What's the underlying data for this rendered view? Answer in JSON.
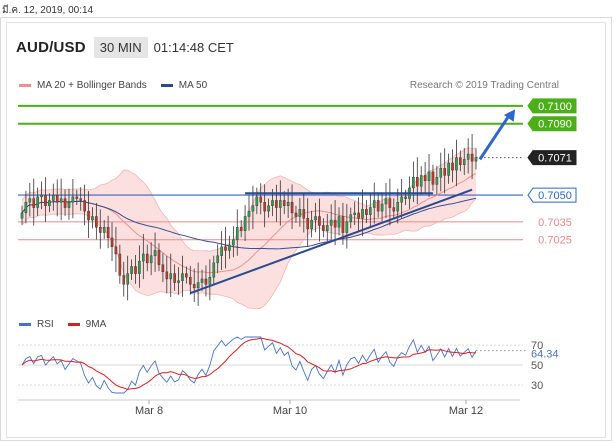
{
  "timestamp": "มี.ค. 12, 2019, 00:14",
  "header": {
    "symbol": "AUD/USD",
    "timeframe": "30 MIN",
    "time": "01:14:48 CET"
  },
  "legend": {
    "bollinger": "MA 20 + Bollinger Bands",
    "ma50": "MA 50"
  },
  "credit": "Research © 2019 Trading Central",
  "rsi_legend": {
    "rsi": "RSI",
    "ma9": "9MA"
  },
  "colors": {
    "resistance_green": "#4caf1a",
    "support_red": "#e88a8a",
    "pivot_blue": "#2f66c8",
    "trend_navy": "#2b4a8c",
    "bollinger_fill": "#fbd5d5",
    "ma20_pink": "#f08f8f",
    "ma50_navy": "#3a4d8f",
    "candle_dark": "#333333",
    "candle_up": "#2e9e4f",
    "candle_down": "#c0392b",
    "rsi_blue": "#4a72c4",
    "rsi_ma_red": "#d62020"
  },
  "chart_data": {
    "type": "candlestick",
    "x_tick_labels": [
      "Mar 8",
      "Mar 10",
      "Mar 12"
    ],
    "price_levels": [
      {
        "value": 0.71,
        "label": "0.7100",
        "kind": "resistance"
      },
      {
        "value": 0.709,
        "label": "0.7090",
        "kind": "resistance"
      },
      {
        "value": 0.7071,
        "label": "0.7071",
        "kind": "last-price"
      },
      {
        "value": 0.705,
        "label": "0.7050",
        "kind": "pivot"
      },
      {
        "value": 0.7035,
        "label": "0.7035",
        "kind": "support"
      },
      {
        "value": 0.7025,
        "label": "0.7025",
        "kind": "support"
      }
    ],
    "price_range": [
      0.698,
      0.711
    ],
    "last_price": 0.7071,
    "close": [
      0.704,
      0.7046,
      0.7048,
      0.7043,
      0.7049,
      0.705,
      0.7044,
      0.7047,
      0.705,
      0.7046,
      0.7048,
      0.7043,
      0.7046,
      0.7049,
      0.7048,
      0.7047,
      0.7041,
      0.7036,
      0.7038,
      0.7032,
      0.7029,
      0.7032,
      0.7026,
      0.7021,
      0.7017,
      0.7005,
      0.7,
      0.7006,
      0.701,
      0.7006,
      0.7013,
      0.7017,
      0.7012,
      0.7016,
      0.7019,
      0.7011,
      0.7007,
      0.7003,
      0.7006,
      0.7001,
      0.7002,
      0.7006,
      0.7004,
      0.7,
      0.6998,
      0.7001,
      0.7003,
      0.7,
      0.7004,
      0.7012,
      0.7016,
      0.7021,
      0.7019,
      0.7022,
      0.7025,
      0.7032,
      0.703,
      0.7038,
      0.7041,
      0.7044,
      0.7049,
      0.7046,
      0.7041,
      0.7044,
      0.7047,
      0.7043,
      0.7047,
      0.7044,
      0.7046,
      0.704,
      0.7038,
      0.7042,
      0.7037,
      0.7031,
      0.7036,
      0.7038,
      0.7033,
      0.703,
      0.7033,
      0.7036,
      0.7032,
      0.7038,
      0.7029,
      0.7035,
      0.7039,
      0.704,
      0.7037,
      0.7042,
      0.7039,
      0.7043,
      0.7047,
      0.7041,
      0.7045,
      0.7048,
      0.7043,
      0.7041,
      0.7046,
      0.7049,
      0.7048,
      0.7054,
      0.706,
      0.7055,
      0.7061,
      0.7058,
      0.7063,
      0.7056,
      0.706,
      0.7065,
      0.7061,
      0.7068,
      0.7064,
      0.7071,
      0.7067,
      0.707,
      0.7073,
      0.7069,
      0.7071
    ],
    "trendlines": [
      {
        "from": {
          "index": 43,
          "price": 0.6995
        },
        "to": {
          "index": 115,
          "price": 0.7053
        }
      },
      {
        "from": {
          "index": 57,
          "price": 0.7051
        },
        "to": {
          "index": 105,
          "price": 0.7051
        }
      }
    ],
    "projection_arrow": {
      "from": {
        "index": 117,
        "price": 0.707
      },
      "to": {
        "index": 126,
        "price": 0.7098
      }
    },
    "rsi": {
      "ticks": [
        70,
        50,
        30
      ],
      "range": [
        20,
        80
      ],
      "last_value": 64.34,
      "last_label": "64.34"
    }
  }
}
